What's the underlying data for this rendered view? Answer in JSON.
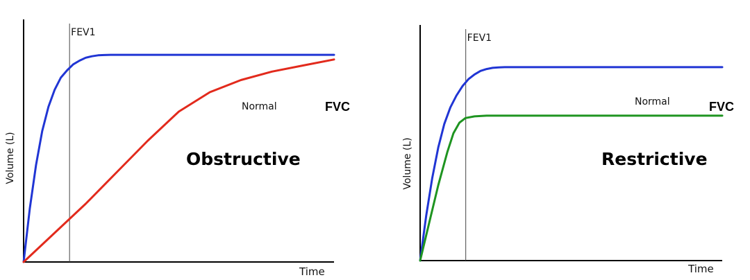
{
  "colors": {
    "normal": "#2035d4",
    "obstructive": "#e22a1c",
    "restrictive": "#1e9420",
    "axis": "#000000"
  },
  "chart_data": [
    {
      "type": "line",
      "xlabel": "Time",
      "ylabel": "Volume (L)",
      "xlim": [
        0,
        10
      ],
      "ylim": [
        0,
        10
      ],
      "grid": false,
      "markers": [
        {
          "label": "FEV1",
          "x": 1.48
        }
      ],
      "annotations": {
        "normal": "Normal",
        "fvc": "FVC",
        "condition": "Obstructive"
      },
      "series": [
        {
          "key": "normal",
          "x": [
            0,
            0.2,
            0.4,
            0.6,
            0.8,
            1.0,
            1.2,
            1.4,
            1.6,
            1.8,
            2.0,
            2.2,
            2.4,
            2.6,
            2.8,
            3.0,
            4,
            6,
            8,
            10
          ],
          "y": [
            0,
            2.2,
            4.0,
            5.4,
            6.4,
            7.1,
            7.6,
            7.9,
            8.15,
            8.3,
            8.42,
            8.48,
            8.52,
            8.53,
            8.54,
            8.54,
            8.54,
            8.54,
            8.54,
            8.54
          ]
        },
        {
          "key": "obstructive",
          "x": [
            0,
            1,
            2,
            3,
            4,
            5,
            6,
            7,
            8,
            9,
            10
          ],
          "y": [
            0,
            1.2,
            2.4,
            3.7,
            5.0,
            6.2,
            7.0,
            7.5,
            7.85,
            8.1,
            8.35
          ]
        }
      ]
    },
    {
      "type": "line",
      "xlabel": "Time",
      "ylabel": "Volume (L)",
      "xlim": [
        0,
        10
      ],
      "ylim": [
        0,
        10
      ],
      "grid": false,
      "markers": [
        {
          "label": "FEV1",
          "x": 1.51
        }
      ],
      "annotations": {
        "normal": "Normal",
        "fvc": "FVC",
        "condition": "Restrictive"
      },
      "series": [
        {
          "key": "normal",
          "x": [
            0,
            0.2,
            0.4,
            0.6,
            0.8,
            1.0,
            1.2,
            1.4,
            1.6,
            1.8,
            2.0,
            2.2,
            2.4,
            2.6,
            2.8,
            3.0,
            4,
            6,
            8,
            10
          ],
          "y": [
            0,
            1.9,
            3.5,
            4.8,
            5.8,
            6.5,
            7.0,
            7.4,
            7.7,
            7.9,
            8.05,
            8.13,
            8.18,
            8.2,
            8.21,
            8.21,
            8.21,
            8.21,
            8.21,
            8.21
          ]
        },
        {
          "key": "restrictive",
          "x": [
            0,
            0.3,
            0.6,
            0.9,
            1.1,
            1.3,
            1.5,
            1.8,
            2.2,
            3,
            5,
            8,
            10
          ],
          "y": [
            0,
            1.6,
            3.2,
            4.6,
            5.4,
            5.85,
            6.05,
            6.12,
            6.15,
            6.15,
            6.15,
            6.15,
            6.15
          ]
        }
      ]
    }
  ]
}
